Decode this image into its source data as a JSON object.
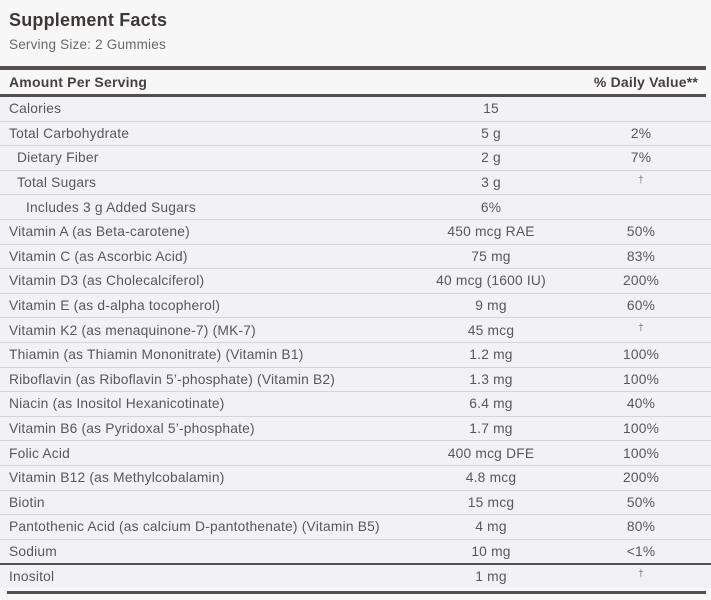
{
  "label": {
    "title": "Supplement Facts",
    "serving_size": "Serving Size: 2 Gummies",
    "header": {
      "amount": "Amount Per Serving",
      "daily_value": "% Daily Value**"
    },
    "footnote_symbol": "†"
  },
  "colors": {
    "divider_dark": "#55504d",
    "row_separator": "#d5d5d8",
    "background": "#f2f2f4",
    "text": "#58585a",
    "title_text": "#3c3836"
  },
  "rows": [
    {
      "name": "Calories",
      "amount": "15",
      "dv": "",
      "indent": 0
    },
    {
      "name": "Total Carbohydrate",
      "amount": "5 g",
      "dv": "2%",
      "indent": 0
    },
    {
      "name": "Dietary Fiber",
      "amount": "2 g",
      "dv": "7%",
      "indent": 1
    },
    {
      "name": "Total Sugars",
      "amount": "3 g",
      "dv": "†",
      "indent": 1
    },
    {
      "name": "Includes 3 g Added Sugars",
      "amount": "6%",
      "dv": "",
      "indent": 2
    },
    {
      "name": "Vitamin A (as Beta-carotene)",
      "amount": "450 mcg RAE",
      "dv": "50%",
      "indent": 0
    },
    {
      "name": "Vitamin C (as Ascorbic Acid)",
      "amount": "75 mg",
      "dv": "83%",
      "indent": 0
    },
    {
      "name": "Vitamin D3 (as Cholecalciferol)",
      "amount": "40 mcg (1600 IU)",
      "dv": "200%",
      "indent": 0
    },
    {
      "name": "Vitamin E (as d-alpha tocopherol)",
      "amount": "9 mg",
      "dv": "60%",
      "indent": 0
    },
    {
      "name": "Vitamin K2 (as menaquinone-7) (MK-7)",
      "amount": "45 mcg",
      "dv": "†",
      "indent": 0
    },
    {
      "name": "Thiamin (as Thiamin Mononitrate) (Vitamin B1)",
      "amount": "1.2 mg",
      "dv": "100%",
      "indent": 0
    },
    {
      "name": "Riboflavin (as Riboflavin 5’-phosphate) (Vitamin B2)",
      "amount": "1.3 mg",
      "dv": "100%",
      "indent": 0
    },
    {
      "name": "Niacin (as Inositol Hexanicotinate)",
      "amount": "6.4 mg",
      "dv": "40%",
      "indent": 0
    },
    {
      "name": "Vitamin B6 (as Pyridoxal 5’-phosphate)",
      "amount": "1.7 mg",
      "dv": "100%",
      "indent": 0
    },
    {
      "name": "Folic Acid",
      "amount": "400 mcg DFE",
      "dv": "100%",
      "indent": 0
    },
    {
      "name": "Vitamin B12 (as Methylcobalamin)",
      "amount": "4.8 mcg",
      "dv": "200%",
      "indent": 0
    },
    {
      "name": "Biotin",
      "amount": "15 mcg",
      "dv": "50%",
      "indent": 0
    },
    {
      "name": "Pantothenic Acid (as calcium D-pantothenate) (Vitamin B5)",
      "amount": "4 mg",
      "dv": "80%",
      "indent": 0
    },
    {
      "name": "Sodium",
      "amount": "10 mg",
      "dv": "<1%",
      "indent": 0
    },
    {
      "name": "Inositol",
      "amount": "1 mg",
      "dv": "†",
      "indent": 0,
      "thick_top": true
    }
  ]
}
